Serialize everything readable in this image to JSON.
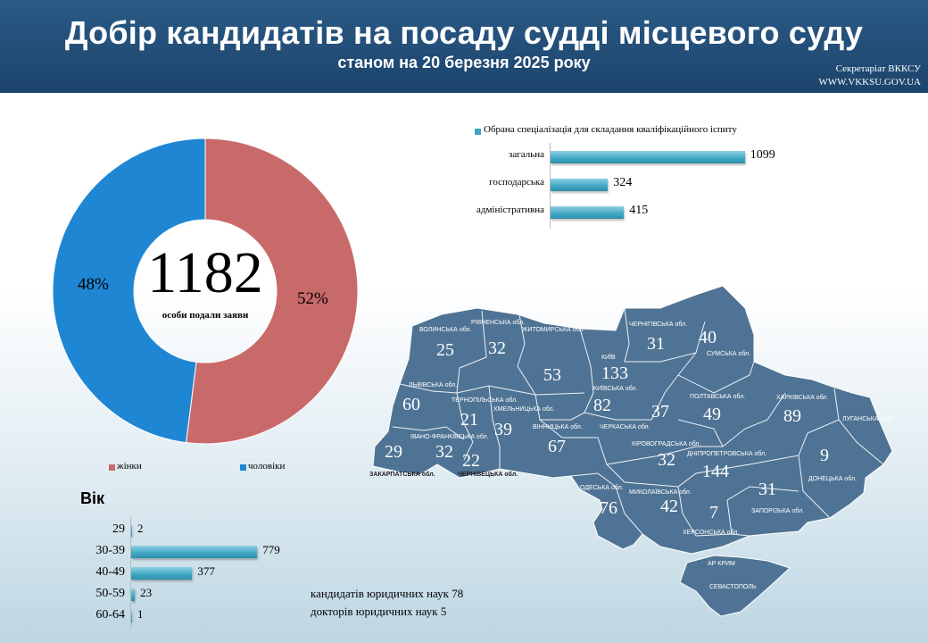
{
  "header": {
    "title": "Добір кандидатів на посаду судді місцевого суду",
    "subtitle": "станом на 20 березня 2025 року",
    "org_line1": "Секретаріат ВККСУ",
    "org_line2": "WWW.VKKSU.GOV.UA"
  },
  "colors": {
    "women": "#c96a6a",
    "men": "#1f86d4",
    "bar": "#3ea6c3",
    "map": "#4f7394",
    "header": "#1f4a73"
  },
  "chart_data": [
    {
      "type": "pie",
      "title": "",
      "center_value": "1182",
      "center_label": "особи подали заяви",
      "slices": [
        {
          "name": "жінки",
          "value": 52,
          "label": "52%"
        },
        {
          "name": "чоловіки",
          "value": 48,
          "label": "48%"
        }
      ],
      "legend_position": "bottom"
    },
    {
      "type": "bar",
      "orientation": "horizontal",
      "legend": "Обрана спеціалізація  для складання кваліфікаційного  іспиту",
      "categories": [
        "загальна",
        "господарська",
        "адміністративна"
      ],
      "values": [
        1099,
        324,
        415
      ],
      "xlim": [
        0,
        1100
      ]
    },
    {
      "type": "bar",
      "orientation": "horizontal",
      "title": "Вік",
      "categories": [
        "29",
        "30-39",
        "40-49",
        "50-59",
        "60-64"
      ],
      "values": [
        2,
        779,
        377,
        23,
        1
      ],
      "xlim": [
        0,
        800
      ]
    }
  ],
  "notes": {
    "candidates": "кандидатів  юридичних  наук 78",
    "doctors": "докторів  юридичних  наук 5"
  },
  "map": {
    "regions": [
      {
        "name": "ВОЛИНСЬКА обл.",
        "value": "25"
      },
      {
        "name": "РІВНЕНСЬКА обл.",
        "value": "32"
      },
      {
        "name": "ЖИТОМИРСЬКА обл.",
        "value": "53"
      },
      {
        "name": "КИЇВ",
        "value": "133"
      },
      {
        "name": "ЧЕРНІГІВСЬКА обл.",
        "value": "31"
      },
      {
        "name": "СУМСЬКА обл.",
        "value": "40"
      },
      {
        "name": "ЛЬВІВСЬКА обл.",
        "value": "60"
      },
      {
        "name": "ТЕРНОПІЛЬСЬКА обл.",
        "value": "21"
      },
      {
        "name": "ХМЕЛЬНИЦЬКА обл.",
        "value": "39"
      },
      {
        "name": "КИЇВСЬКА обл.",
        "value": "82"
      },
      {
        "name": "ПОЛТАВСЬКА обл.",
        "value": "49"
      },
      {
        "name": "ХАРКІВСЬКА обл.",
        "value": "89"
      },
      {
        "name": "ЧЕРКАСЬКА обл.",
        "value": "37"
      },
      {
        "name": "ВІННИЦЬКА обл.",
        "value": "67"
      },
      {
        "name": "ЗАКАРПАТСЬКА обл.",
        "value": "29"
      },
      {
        "name": "ІВАНО-ФРАНКІВСЬКА обл.",
        "value": "32"
      },
      {
        "name": "ЧЕРНІВЕЦЬКА обл.",
        "value": "22"
      },
      {
        "name": "ЛУГАНСЬКА обл.",
        "value": ""
      },
      {
        "name": "КІРОВОГРАДСЬКА обл.",
        "value": "32"
      },
      {
        "name": "ДНІПРОПЕТРОВСЬКА обл.",
        "value": "144"
      },
      {
        "name": "ДОНЕЦЬКА обл.",
        "value": "9"
      },
      {
        "name": "ОДЕСЬКА обл.",
        "value": "76"
      },
      {
        "name": "МИКОЛАЇВСЬКА обл.",
        "value": "42"
      },
      {
        "name": "ЗАПОРІЗЬКА обл.",
        "value": "31"
      },
      {
        "name": "ХЕРСОНСЬКА обл.",
        "value": "7"
      },
      {
        "name": "АР КРИМ",
        "value": ""
      },
      {
        "name": "СЕВАСТОПОЛЬ",
        "value": ""
      }
    ]
  }
}
